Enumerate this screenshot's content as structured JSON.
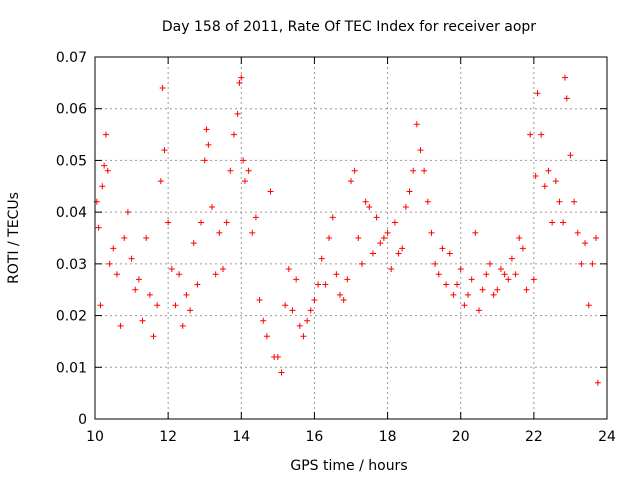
{
  "chart_data": {
    "type": "scatter",
    "title": "Day 158 of 2011, Rate Of TEC Index for receiver aopr",
    "xlabel": "GPS time / hours",
    "ylabel": "ROTI / TECUs",
    "xlim": [
      10,
      24
    ],
    "ylim": [
      0,
      0.07
    ],
    "x_ticks": [
      10,
      12,
      14,
      16,
      18,
      20,
      22,
      24
    ],
    "x_tick_labels": [
      "10",
      "12",
      "14",
      "16",
      "18",
      "20",
      "22",
      "24"
    ],
    "y_ticks": [
      0,
      0.01,
      0.02,
      0.03,
      0.04,
      0.05,
      0.06,
      0.07
    ],
    "y_tick_labels": [
      "0",
      "0.01",
      "0.02",
      "0.03",
      "0.04",
      "0.05",
      "0.06",
      "0.07"
    ],
    "grid": true,
    "marker": "plus",
    "color": "#ff0000",
    "series": [
      {
        "name": "ROTI",
        "x": [
          10.05,
          10.1,
          10.15,
          10.2,
          10.25,
          10.3,
          10.35,
          10.4,
          10.5,
          10.6,
          10.7,
          10.8,
          10.9,
          11.0,
          11.1,
          11.2,
          11.3,
          11.4,
          11.5,
          11.6,
          11.7,
          11.8,
          11.85,
          11.9,
          12.0,
          12.1,
          12.2,
          12.3,
          12.4,
          12.5,
          12.6,
          12.7,
          12.8,
          12.9,
          13.0,
          13.05,
          13.1,
          13.2,
          13.3,
          13.4,
          13.5,
          13.6,
          13.7,
          13.8,
          13.9,
          13.95,
          14.0,
          14.05,
          14.1,
          14.2,
          14.3,
          14.4,
          14.5,
          14.6,
          14.7,
          14.8,
          14.9,
          15.0,
          15.1,
          15.2,
          15.3,
          15.4,
          15.5,
          15.6,
          15.7,
          15.8,
          15.9,
          16.0,
          16.1,
          16.2,
          16.3,
          16.4,
          16.5,
          16.6,
          16.7,
          16.8,
          16.9,
          17.0,
          17.1,
          17.2,
          17.3,
          17.4,
          17.5,
          17.6,
          17.7,
          17.8,
          17.9,
          18.0,
          18.1,
          18.2,
          18.3,
          18.4,
          18.5,
          18.6,
          18.7,
          18.8,
          18.9,
          19.0,
          19.1,
          19.2,
          19.3,
          19.4,
          19.5,
          19.6,
          19.7,
          19.8,
          19.9,
          20.0,
          20.1,
          20.2,
          20.3,
          20.4,
          20.5,
          20.6,
          20.7,
          20.8,
          20.9,
          21.0,
          21.1,
          21.2,
          21.3,
          21.4,
          21.5,
          21.6,
          21.7,
          21.8,
          21.9,
          22.0,
          22.05,
          22.1,
          22.2,
          22.3,
          22.4,
          22.5,
          22.6,
          22.7,
          22.8,
          22.85,
          22.9,
          23.0,
          23.1,
          23.2,
          23.3,
          23.4,
          23.5,
          23.6,
          23.7,
          23.75
        ],
        "y": [
          0.042,
          0.037,
          0.022,
          0.045,
          0.049,
          0.055,
          0.048,
          0.03,
          0.033,
          0.028,
          0.018,
          0.035,
          0.04,
          0.031,
          0.025,
          0.027,
          0.019,
          0.035,
          0.024,
          0.016,
          0.022,
          0.046,
          0.064,
          0.052,
          0.038,
          0.029,
          0.022,
          0.028,
          0.018,
          0.024,
          0.021,
          0.034,
          0.026,
          0.038,
          0.05,
          0.056,
          0.053,
          0.041,
          0.028,
          0.036,
          0.029,
          0.038,
          0.048,
          0.055,
          0.059,
          0.065,
          0.066,
          0.05,
          0.046,
          0.048,
          0.036,
          0.039,
          0.023,
          0.019,
          0.016,
          0.044,
          0.012,
          0.012,
          0.009,
          0.022,
          0.029,
          0.021,
          0.027,
          0.018,
          0.016,
          0.019,
          0.021,
          0.023,
          0.026,
          0.031,
          0.026,
          0.035,
          0.039,
          0.028,
          0.024,
          0.023,
          0.027,
          0.046,
          0.048,
          0.035,
          0.03,
          0.042,
          0.041,
          0.032,
          0.039,
          0.034,
          0.035,
          0.036,
          0.029,
          0.038,
          0.032,
          0.033,
          0.041,
          0.044,
          0.048,
          0.057,
          0.052,
          0.048,
          0.042,
          0.036,
          0.03,
          0.028,
          0.033,
          0.026,
          0.032,
          0.024,
          0.026,
          0.029,
          0.022,
          0.024,
          0.027,
          0.036,
          0.021,
          0.025,
          0.028,
          0.03,
          0.024,
          0.025,
          0.029,
          0.028,
          0.027,
          0.031,
          0.028,
          0.035,
          0.033,
          0.025,
          0.055,
          0.027,
          0.047,
          0.063,
          0.055,
          0.045,
          0.048,
          0.038,
          0.046,
          0.042,
          0.038,
          0.066,
          0.062,
          0.051,
          0.042,
          0.036,
          0.03,
          0.034,
          0.022,
          0.03,
          0.035,
          0.007
        ]
      }
    ]
  }
}
